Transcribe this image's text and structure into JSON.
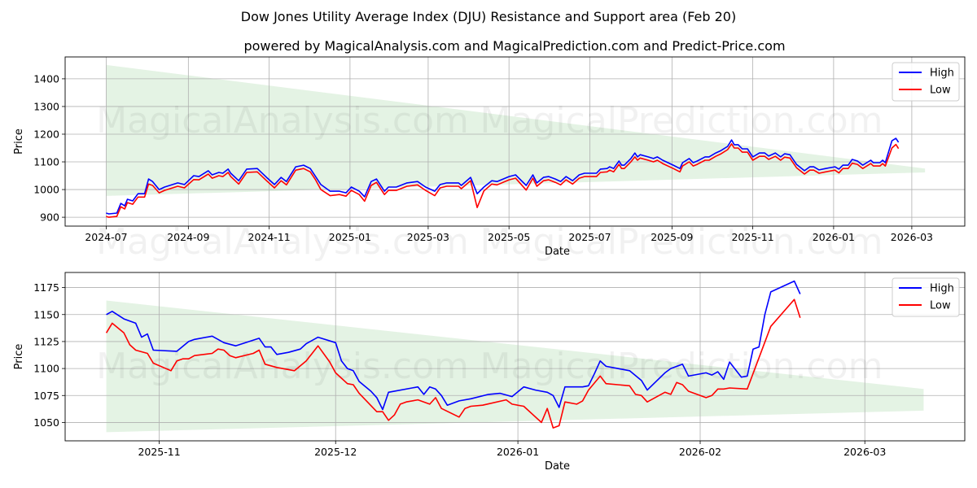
{
  "title": "Dow Jones Utility Average Index (DJU) Resistance and Support area (Feb 20)",
  "subtitle": "powered by MagicalAnalysis.com and MagicalPrediction.com and Predict-Price.com",
  "watermarks": [
    "MagicalAnalysis.com",
    "MagicalPrediction.com"
  ],
  "colors": {
    "high": "#0000ff",
    "low": "#ff0000",
    "band": "#2ca02c",
    "grid": "#b0b0b0"
  },
  "chart_data": [
    {
      "type": "line",
      "title": "",
      "xlabel": "Date",
      "ylabel": "Price",
      "x_origin": "2024-07-01",
      "x_unit": "days since x_origin",
      "xlim": [
        -31,
        648
      ],
      "ylim": [
        868,
        1479
      ],
      "x_ticks": [
        {
          "label": "2024-07",
          "day": 0
        },
        {
          "label": "2024-09",
          "day": 62
        },
        {
          "label": "2024-11",
          "day": 123
        },
        {
          "label": "2025-01",
          "day": 184
        },
        {
          "label": "2025-03",
          "day": 243
        },
        {
          "label": "2025-05",
          "day": 304
        },
        {
          "label": "2025-07",
          "day": 365
        },
        {
          "label": "2025-09",
          "day": 427
        },
        {
          "label": "2025-11",
          "day": 488
        },
        {
          "label": "2026-01",
          "day": 549
        },
        {
          "label": "2026-03",
          "day": 608
        }
      ],
      "y_ticks": [
        "900",
        "1000",
        "1100",
        "1200",
        "1300",
        "1400"
      ],
      "grid": true,
      "legend": {
        "position": "top-right",
        "entries": [
          "High",
          "Low"
        ]
      },
      "band": {
        "x": [
          0,
          618
        ],
        "upper": [
          1450,
          1076
        ],
        "lower": [
          977,
          1062
        ]
      },
      "series": [
        {
          "name": "High",
          "x": [
            0,
            2,
            8,
            11,
            14,
            16,
            20,
            24,
            29,
            32,
            35,
            40,
            44,
            54,
            59,
            66,
            70,
            77,
            80,
            85,
            88,
            92,
            94,
            100,
            106,
            114,
            121,
            127,
            132,
            136,
            143,
            149,
            154,
            158,
            162,
            169,
            176,
            181,
            185,
            191,
            195,
            200,
            204,
            210,
            213,
            219,
            227,
            235,
            241,
            248,
            252,
            257,
            266,
            268,
            275,
            280,
            285,
            291,
            295,
            304,
            309,
            317,
            322,
            325,
            330,
            334,
            339,
            343,
            347,
            352,
            357,
            361,
            370,
            373,
            378,
            380,
            383,
            387,
            389,
            391,
            396,
            399,
            401,
            403,
            409,
            413,
            416,
            420,
            428,
            433,
            435,
            440,
            443,
            446,
            452,
            455,
            460,
            464,
            469,
            472,
            474,
            477,
            480,
            484,
            488,
            493,
            497,
            500,
            505,
            509,
            512,
            516,
            521,
            527,
            531,
            534,
            538,
            543,
            550,
            553,
            556,
            560,
            563,
            567,
            571,
            577,
            579,
            584,
            586,
            588,
            593,
            596,
            598
          ],
          "values": [
            915,
            912,
            915,
            950,
            941,
            965,
            959,
            985,
            985,
            1038,
            1029,
            1000,
            1009,
            1024,
            1018,
            1050,
            1047,
            1068,
            1053,
            1062,
            1059,
            1074,
            1059,
            1032,
            1074,
            1076,
            1044,
            1018,
            1044,
            1029,
            1082,
            1088,
            1076,
            1047,
            1018,
            994,
            994,
            988,
            1009,
            994,
            974,
            1029,
            1038,
            994,
            1009,
            1009,
            1024,
            1029,
            1009,
            994,
            1018,
            1024,
            1024,
            1015,
            1044,
            985,
            1009,
            1032,
            1029,
            1047,
            1053,
            1015,
            1053,
            1024,
            1044,
            1047,
            1038,
            1029,
            1047,
            1032,
            1053,
            1059,
            1059,
            1074,
            1076,
            1082,
            1076,
            1103,
            1088,
            1088,
            1112,
            1132,
            1118,
            1126,
            1118,
            1112,
            1118,
            1106,
            1088,
            1076,
            1097,
            1112,
            1097,
            1103,
            1118,
            1118,
            1132,
            1141,
            1156,
            1179,
            1162,
            1162,
            1147,
            1147,
            1118,
            1132,
            1132,
            1121,
            1132,
            1118,
            1129,
            1126,
            1091,
            1068,
            1082,
            1082,
            1071,
            1076,
            1082,
            1074,
            1088,
            1088,
            1109,
            1103,
            1088,
            1106,
            1097,
            1097,
            1106,
            1097,
            1176,
            1185,
            1171
          ]
        },
        {
          "name": "Low",
          "x": [
            0,
            2,
            8,
            11,
            14,
            16,
            20,
            24,
            29,
            32,
            35,
            40,
            44,
            54,
            59,
            66,
            70,
            77,
            80,
            85,
            88,
            92,
            94,
            100,
            106,
            114,
            121,
            127,
            132,
            136,
            143,
            149,
            154,
            158,
            162,
            169,
            176,
            181,
            185,
            191,
            195,
            200,
            204,
            210,
            213,
            219,
            227,
            235,
            241,
            248,
            252,
            257,
            266,
            268,
            275,
            280,
            285,
            291,
            295,
            304,
            309,
            317,
            322,
            325,
            330,
            334,
            339,
            343,
            347,
            352,
            357,
            361,
            370,
            373,
            378,
            380,
            383,
            387,
            389,
            391,
            396,
            399,
            401,
            403,
            409,
            413,
            416,
            420,
            428,
            433,
            435,
            440,
            443,
            446,
            452,
            455,
            460,
            464,
            469,
            472,
            474,
            477,
            480,
            484,
            488,
            493,
            497,
            500,
            505,
            509,
            512,
            516,
            521,
            527,
            531,
            534,
            538,
            543,
            550,
            553,
            556,
            560,
            563,
            567,
            571,
            577,
            579,
            584,
            586,
            588,
            593,
            596,
            598
          ],
          "values": [
            903,
            900,
            903,
            938,
            930,
            953,
            947,
            973,
            973,
            1020,
            1015,
            988,
            997,
            1012,
            1006,
            1036,
            1035,
            1056,
            1041,
            1050,
            1047,
            1062,
            1047,
            1020,
            1062,
            1064,
            1032,
            1006,
            1032,
            1017,
            1070,
            1076,
            1064,
            1035,
            1000,
            978,
            982,
            976,
            997,
            982,
            958,
            1015,
            1026,
            982,
            997,
            997,
            1012,
            1017,
            997,
            978,
            1006,
            1012,
            1012,
            1003,
            1032,
            935,
            995,
            1020,
            1017,
            1035,
            1041,
            998,
            1041,
            1012,
            1032,
            1035,
            1026,
            1017,
            1035,
            1020,
            1041,
            1047,
            1047,
            1062,
            1064,
            1070,
            1064,
            1091,
            1076,
            1076,
            1100,
            1118,
            1106,
            1114,
            1106,
            1100,
            1106,
            1094,
            1076,
            1064,
            1085,
            1100,
            1085,
            1091,
            1106,
            1106,
            1120,
            1129,
            1144,
            1165,
            1150,
            1150,
            1135,
            1135,
            1106,
            1120,
            1120,
            1109,
            1120,
            1106,
            1117,
            1114,
            1079,
            1056,
            1070,
            1070,
            1059,
            1064,
            1070,
            1060,
            1076,
            1076,
            1095,
            1091,
            1076,
            1094,
            1085,
            1085,
            1094,
            1085,
            1150,
            1163,
            1148
          ]
        }
      ]
    },
    {
      "type": "line",
      "title": "",
      "xlabel": "Date",
      "ylabel": "Price",
      "x_origin": "2025-10-23",
      "x_unit": "days since x_origin",
      "xlim": [
        -7,
        146
      ],
      "ylim": [
        1033,
        1189
      ],
      "x_ticks": [
        {
          "label": "2025-11",
          "day": 9
        },
        {
          "label": "2025-12",
          "day": 39
        },
        {
          "label": "2026-01",
          "day": 70
        },
        {
          "label": "2026-02",
          "day": 101
        },
        {
          "label": "2026-03",
          "day": 129
        }
      ],
      "y_ticks": [
        "1050",
        "1075",
        "1100",
        "1125",
        "1150",
        "1175"
      ],
      "grid": true,
      "legend": {
        "position": "top-right",
        "entries": [
          "High",
          "Low"
        ]
      },
      "band": {
        "x": [
          0,
          139
        ],
        "upper": [
          1163,
          1081
        ],
        "lower": [
          1041,
          1061
        ]
      },
      "series": [
        {
          "name": "High",
          "x": [
            0,
            1,
            3,
            5,
            6,
            7,
            8,
            12,
            14,
            15,
            18,
            20,
            22,
            26,
            27,
            28,
            29,
            31,
            33,
            34,
            36,
            39,
            40,
            41,
            42,
            43,
            45,
            46,
            47,
            48,
            52,
            53,
            54,
            55,
            56,
            57,
            58,
            60,
            62,
            65,
            67,
            69,
            71,
            73,
            75,
            76,
            77,
            78,
            81,
            82,
            83,
            84,
            85,
            89,
            91,
            92,
            95,
            96,
            98,
            99,
            102,
            103,
            104,
            105,
            106,
            108,
            109,
            110,
            111,
            112,
            113,
            117,
            118
          ],
          "values": [
            1150,
            1153,
            1146,
            1142,
            1129,
            1132,
            1117,
            1116,
            1125,
            1127,
            1130,
            1124,
            1121,
            1128,
            1120,
            1120,
            1113,
            1115,
            1118,
            1123,
            1129,
            1124,
            1107,
            1100,
            1098,
            1088,
            1079,
            1073,
            1062,
            1078,
            1082,
            1083,
            1076,
            1083,
            1081,
            1075,
            1066,
            1070,
            1072,
            1076,
            1077,
            1074,
            1083,
            1080,
            1078,
            1075,
            1064,
            1083,
            1083,
            1084,
            1095,
            1107,
            1102,
            1098,
            1089,
            1080,
            1096,
            1100,
            1104,
            1093,
            1096,
            1094,
            1097,
            1090,
            1106,
            1092,
            1093,
            1118,
            1120,
            1150,
            1171,
            1181,
            1169
          ]
        },
        {
          "name": "Low",
          "x": [
            0,
            1,
            3,
            4,
            5,
            7,
            8,
            11,
            12,
            13,
            14,
            15,
            18,
            19,
            20,
            21,
            22,
            25,
            26,
            27,
            29,
            32,
            34,
            36,
            38,
            39,
            41,
            42,
            43,
            46,
            47,
            48,
            49,
            50,
            51,
            53,
            55,
            56,
            57,
            60,
            61,
            62,
            64,
            68,
            69,
            71,
            74,
            75,
            76,
            77,
            78,
            80,
            81,
            82,
            84,
            85,
            89,
            90,
            91,
            92,
            95,
            96,
            97,
            98,
            99,
            102,
            103,
            104,
            105,
            106,
            109,
            113,
            117,
            118
          ],
          "values": [
            1133,
            1142,
            1133,
            1122,
            1117,
            1114,
            1105,
            1098,
            1107,
            1109,
            1109,
            1112,
            1114,
            1118,
            1117,
            1112,
            1110,
            1114,
            1117,
            1104,
            1101,
            1098,
            1107,
            1121,
            1106,
            1096,
            1086,
            1085,
            1077,
            1060,
            1060,
            1052,
            1057,
            1067,
            1069,
            1071,
            1067,
            1073,
            1063,
            1055,
            1063,
            1065,
            1066,
            1071,
            1067,
            1065,
            1050,
            1063,
            1045,
            1047,
            1069,
            1067,
            1070,
            1080,
            1093,
            1086,
            1084,
            1076,
            1075,
            1069,
            1078,
            1076,
            1087,
            1085,
            1079,
            1073,
            1075,
            1081,
            1081,
            1082,
            1081,
            1139,
            1164,
            1147
          ]
        }
      ]
    }
  ]
}
